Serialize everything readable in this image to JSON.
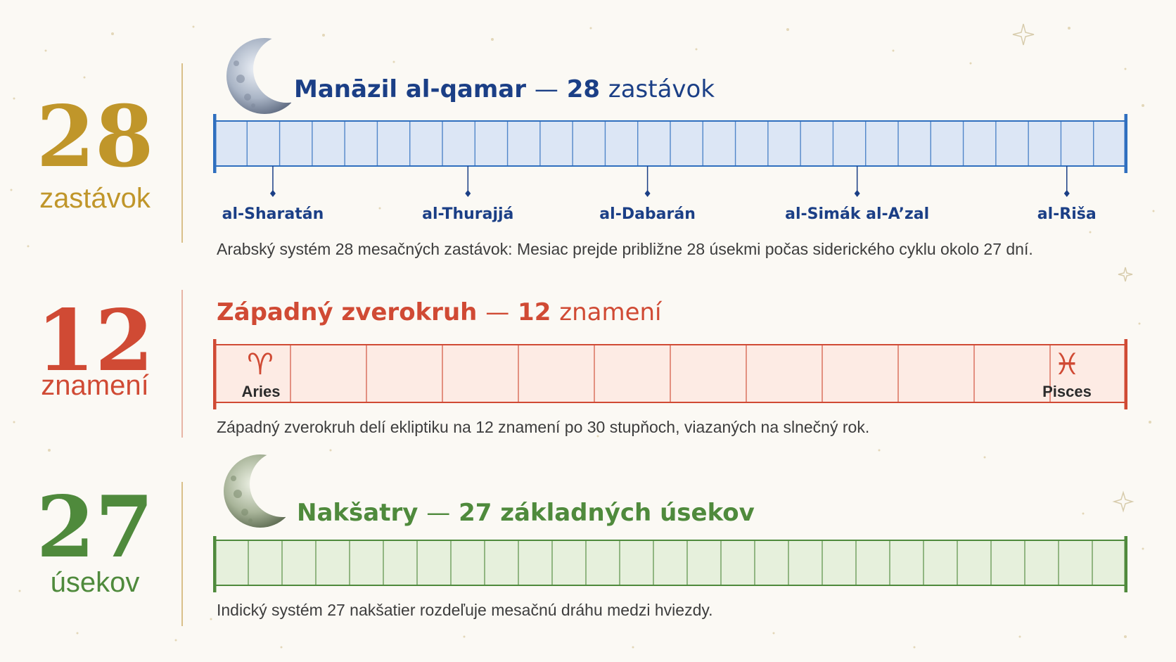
{
  "colors": {
    "lunar": "#1b3f86",
    "lunar_bar_fill": "#dce6f5",
    "lunar_bar_stroke": "#2f6fbf",
    "gold": "#c0962a",
    "zodiac": "#d04a34",
    "zodiac_fill": "#fdebe4",
    "nakshatra": "#4f8a3c",
    "nakshatra_fill": "#e6f0dc",
    "background": "#fbf9f4"
  },
  "manazil": {
    "big_number": "28",
    "big_unit": "zastávok",
    "title_name": "Manāzil al-qamar",
    "title_dash": "—",
    "title_count": "28",
    "title_unit": "zastávok",
    "segments": 28,
    "stations": [
      {
        "label": "al-Sharatán",
        "segment": 3
      },
      {
        "label": "al-Thurajjá",
        "segment": 13
      },
      {
        "label": "al-Dabarán",
        "segment": 22
      },
      {
        "label": "al-Simák al-A’zal",
        "segment": 33
      },
      {
        "label": "al-Riša",
        "segment": 44
      }
    ],
    "description": "Arabský systém 28 mesačných zastávok: Mesiac prejde približne 28 úsekmi počas siderického cyklu okolo 27 dní.",
    "moon_icon": "crescent-moon-icon"
  },
  "zodiac": {
    "big_number": "12",
    "big_unit": "znamení",
    "title_name": "Západný zverokruh",
    "title_dash": "—",
    "title_count": "12",
    "title_unit": "znamení",
    "segments": 12,
    "first_sign": {
      "glyph": "♈",
      "name": "Aries",
      "icon": "aries-icon"
    },
    "last_sign": {
      "glyph": "♓",
      "name": "Pisces",
      "icon": "pisces-icon"
    },
    "description": "Západný zverokruh delí ekliptiku na 12 znamení po 30 stupňoch, viazaných na slnečný rok."
  },
  "nakshatra": {
    "big_number": "27",
    "big_unit": "úsekov",
    "title_name": "Nakšatry",
    "title_dash": "—",
    "title_count": "27",
    "title_unit": "základných úsekov",
    "segments": 27,
    "description": "Indický systém 27 nakšatier rozdeľuje mesačnú dráhu medzi hviezdy.",
    "moon_icon": "crescent-moon-icon"
  }
}
